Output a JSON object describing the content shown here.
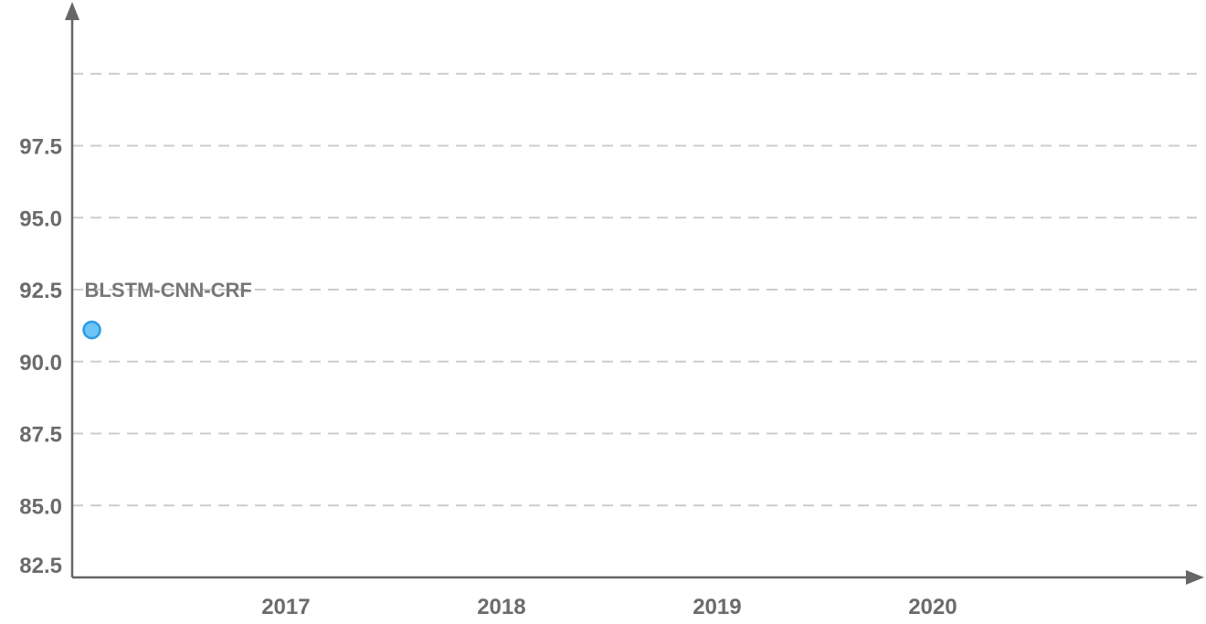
{
  "chart_data": {
    "type": "scatter",
    "title": "",
    "xlabel": "",
    "ylabel": "",
    "x_ticks": [
      "2017",
      "2018",
      "2019",
      "2020"
    ],
    "y_ticks": [
      "82.5",
      "85.0",
      "87.5",
      "90.0",
      "92.5",
      "95.0",
      "97.5"
    ],
    "xlim": [
      2016.1,
      2021.2
    ],
    "ylim": [
      82.5,
      100.0
    ],
    "grid": true,
    "series": [
      {
        "points": [
          {
            "x": 2016.1,
            "y": 91.1,
            "label": "BLSTM-CNN-CRF"
          }
        ],
        "color": "#6ec3f7",
        "edge_color": "#2a9be6"
      }
    ],
    "gridline_color": "#cccccc",
    "axis_color": "#666666"
  }
}
